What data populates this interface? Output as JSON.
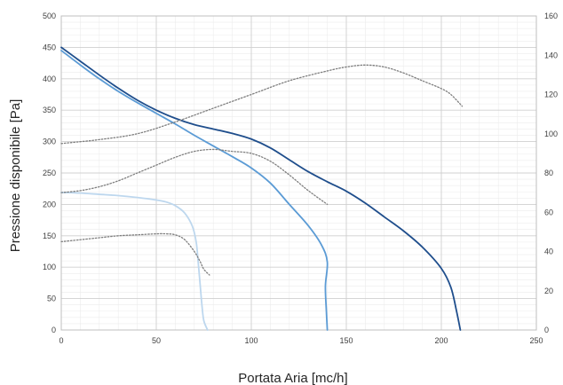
{
  "chart_data": {
    "type": "line",
    "title": "",
    "xlabel": "Portata Aria [mc/h]",
    "ylabel": "Pressione disponibile [Pa]",
    "y2label": "",
    "xlim": [
      0,
      250
    ],
    "ylim": [
      0,
      500
    ],
    "y2lim": [
      0,
      160
    ],
    "xticks": [
      "0",
      "50",
      "100",
      "150",
      "200",
      "250"
    ],
    "yticks": [
      "0",
      "50",
      "100",
      "150",
      "200",
      "250",
      "300",
      "350",
      "400",
      "450",
      "500"
    ],
    "y2ticks": [
      "0",
      "20",
      "40",
      "60",
      "80",
      "100",
      "120",
      "140",
      "160"
    ],
    "grid": true,
    "legend": "none",
    "series": [
      {
        "color": "#1f4e8c",
        "style": "solid",
        "axis": "left",
        "x": [
          0,
          10,
          20,
          30,
          40,
          50,
          60,
          70,
          80,
          90,
          100,
          110,
          120,
          130,
          140,
          150,
          160,
          170,
          180,
          190,
          200,
          205,
          208,
          210
        ],
        "y": [
          450,
          428,
          406,
          385,
          366,
          350,
          337,
          327,
          320,
          313,
          304,
          290,
          271,
          252,
          236,
          221,
          202,
          180,
          158,
          132,
          98,
          68,
          30,
          0
        ]
      },
      {
        "color": "#5b9bd5",
        "style": "solid",
        "axis": "left",
        "x": [
          0,
          10,
          20,
          30,
          40,
          50,
          60,
          70,
          80,
          90,
          100,
          110,
          120,
          130,
          137,
          140,
          139,
          139.5,
          140
        ],
        "y": [
          445,
          422,
          400,
          380,
          362,
          345,
          328,
          310,
          293,
          276,
          258,
          234,
          200,
          166,
          135,
          108,
          70,
          30,
          0
        ]
      },
      {
        "color": "#bdd7ee",
        "style": "solid",
        "axis": "left",
        "x": [
          0,
          10,
          20,
          30,
          40,
          50,
          55,
          60,
          65,
          69,
          71,
          72,
          73,
          74,
          75,
          77
        ],
        "y": [
          219,
          218,
          216,
          214,
          211,
          207,
          204,
          198,
          186,
          165,
          140,
          110,
          75,
          40,
          15,
          0
        ]
      },
      {
        "color": "#7f7f7f",
        "style": "dotted",
        "axis": "right",
        "x": [
          0,
          20,
          40,
          60,
          80,
          100,
          120,
          140,
          150,
          160,
          170,
          180,
          190,
          200,
          205,
          211
        ],
        "y": [
          95,
          97,
          100,
          106,
          113,
          120,
          127,
          132,
          134,
          135,
          134,
          131,
          127,
          123,
          120,
          114
        ]
      },
      {
        "color": "#7f7f7f",
        "style": "dotted",
        "axis": "right",
        "x": [
          0,
          10,
          20,
          30,
          40,
          50,
          60,
          70,
          80,
          90,
          100,
          110,
          120,
          130,
          140
        ],
        "y": [
          70,
          71,
          73,
          76,
          80,
          84,
          88,
          91,
          92,
          91,
          90,
          86,
          79,
          71,
          64
        ]
      },
      {
        "color": "#7f7f7f",
        "style": "dotted",
        "axis": "right",
        "x": [
          0,
          10,
          20,
          30,
          40,
          50,
          55,
          60,
          65,
          70,
          73,
          75,
          78
        ],
        "y": [
          45,
          46,
          47,
          48,
          48.5,
          49,
          49,
          48.5,
          46,
          40,
          35,
          31,
          28
        ]
      }
    ]
  }
}
